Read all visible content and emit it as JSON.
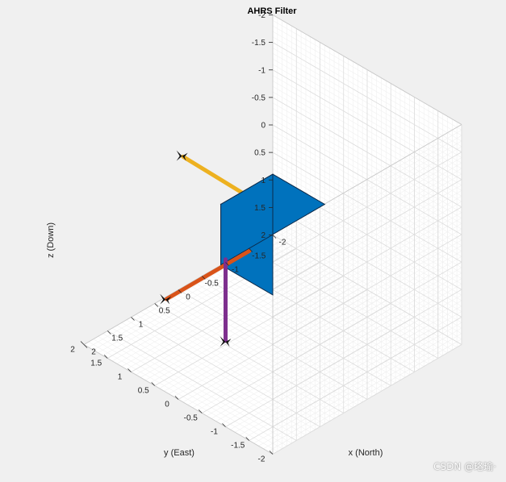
{
  "chart_data": {
    "type": "3d-scene",
    "title": "AHRS Filter",
    "xlabel": "x (North)",
    "ylabel": "y (East)",
    "zlabel": "z (Down)",
    "xlim": [
      -2,
      2
    ],
    "ylim": [
      -2,
      2
    ],
    "zlim": [
      -2,
      2
    ],
    "x_ticks": [
      "-2",
      "-1.5",
      "-1",
      "-0.5",
      "0",
      "0.5",
      "1",
      "1.5",
      "2"
    ],
    "y_ticks": [
      "2",
      "1.5",
      "1",
      "0.5",
      "0",
      "-0.5",
      "-1",
      "-1.5",
      "-2"
    ],
    "z_ticks": [
      "-2",
      "-1.5",
      "-1",
      "-0.5",
      "0",
      "0.5",
      "1",
      "1.5",
      "2"
    ],
    "grid": true,
    "minor_grid": true,
    "body": {
      "shape": "cube",
      "color": "#0072bd"
    },
    "axes_arrows": [
      {
        "axis": "x",
        "color": "#d95319"
      },
      {
        "axis": "y",
        "color": "#edb120"
      },
      {
        "axis": "z",
        "color": "#7e2f8e"
      }
    ]
  },
  "watermark": "CSDN @珞瑜·"
}
